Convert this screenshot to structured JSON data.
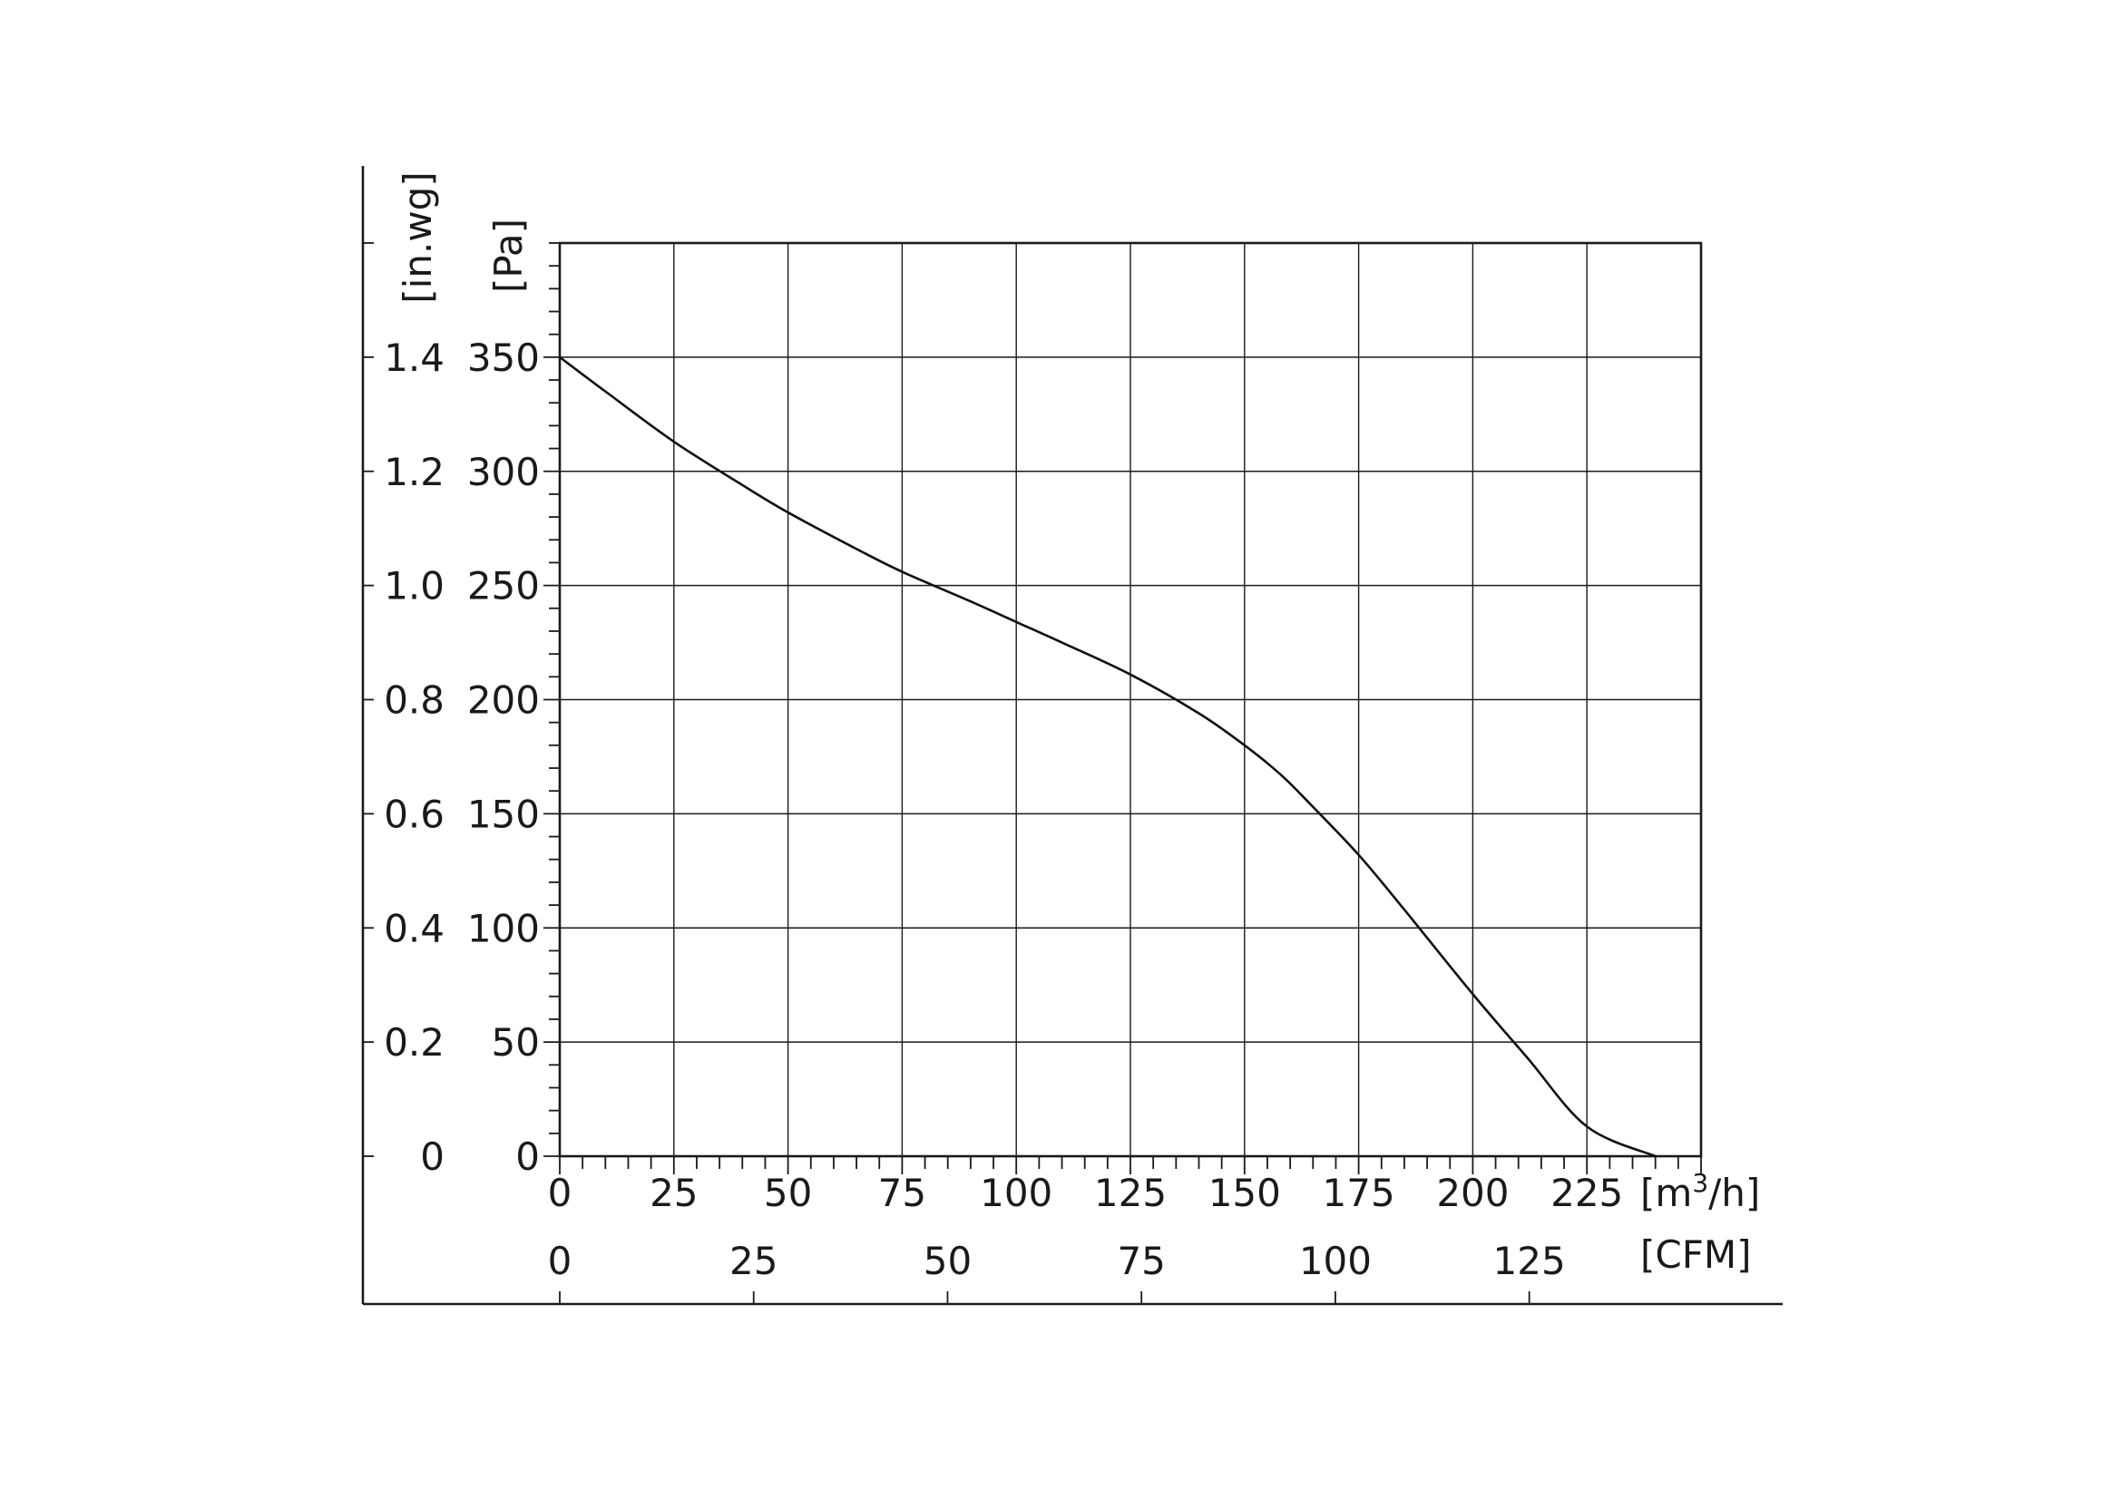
{
  "chart_data": {
    "type": "line",
    "title": "",
    "xlabel": "[m3/h]",
    "xlabel_secondary": "[CFM]",
    "ylabel": "[Pa]",
    "ylabel_secondary": "[in.wg]",
    "xlim": [
      0,
      250
    ],
    "ylim": [
      0,
      400
    ],
    "x_ticks": [
      0,
      25,
      50,
      75,
      100,
      125,
      150,
      175,
      200,
      225
    ],
    "x_tick_labels": [
      "0",
      "25",
      "50",
      "75",
      "100",
      "125",
      "150",
      "175",
      "200",
      "225"
    ],
    "x2_ticks": [
      0,
      25,
      50,
      75,
      100,
      125
    ],
    "x2_tick_labels": [
      "0",
      "25",
      "50",
      "75",
      "100",
      "125"
    ],
    "x2_per_x": 0.5886,
    "y_ticks": [
      0,
      50,
      100,
      150,
      200,
      250,
      300,
      350
    ],
    "y_tick_labels": [
      "0",
      "50",
      "100",
      "150",
      "200",
      "250",
      "300",
      "350"
    ],
    "y2_ticks": [
      0,
      0.2,
      0.4,
      0.6,
      0.8,
      1.0,
      1.2,
      1.4
    ],
    "y2_tick_labels": [
      "0",
      "0.2",
      "0.4",
      "0.6",
      "0.8",
      "1.0",
      "1.2",
      "1.4"
    ],
    "y2_per_y": 0.004,
    "grid": true,
    "series": [
      {
        "x": [
          0,
          10,
          25,
          40,
          50,
          65,
          75,
          90,
          100,
          110,
          125,
          140,
          150,
          158,
          165,
          175,
          185,
          200,
          212,
          225,
          240
        ],
        "y": [
          350,
          335,
          313,
          294,
          282,
          266,
          256,
          243,
          234,
          225,
          211,
          194,
          180,
          167,
          153,
          132,
          108,
          71,
          43,
          13,
          0
        ]
      }
    ]
  }
}
